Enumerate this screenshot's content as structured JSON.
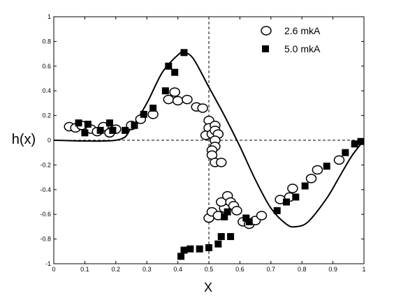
{
  "chart_data": {
    "type": "scatter",
    "title": "",
    "xlabel": "X",
    "ylabel": "h(x)",
    "xlim": [
      0,
      1
    ],
    "ylim": [
      -1,
      1
    ],
    "x_ticks": [
      0,
      0.1,
      0.2,
      0.3,
      0.4,
      0.5,
      0.6,
      0.7,
      0.8,
      0.9,
      1
    ],
    "x_tick_labels": [
      "0",
      "0.1",
      "0.2",
      "0.3",
      "0.4",
      "0.5",
      "0.6",
      "0.7",
      "0.8",
      "0.9",
      "1"
    ],
    "y_ticks": [
      -1,
      -0.8,
      -0.6,
      -0.4,
      -0.2,
      0,
      0.2,
      0.4,
      0.6,
      0.8,
      1
    ],
    "y_tick_labels": [
      "-1",
      "-0.8",
      "-0.6",
      "-0.4",
      "-0.2",
      "0",
      "0.2",
      "0.4",
      "0.6",
      "0.8",
      "1"
    ],
    "grid": false,
    "reference_lines": {
      "horizontal_y": 0,
      "vertical_x": 0.5,
      "style": "dashed"
    },
    "legend_position": "top-right",
    "series": [
      {
        "name": "2.6 mkA",
        "marker": "open-ellipse",
        "points": [
          [
            0.05,
            0.11
          ],
          [
            0.07,
            0.1
          ],
          [
            0.09,
            0.12
          ],
          [
            0.12,
            0.09
          ],
          [
            0.14,
            0.07
          ],
          [
            0.16,
            0.11
          ],
          [
            0.18,
            0.06
          ],
          [
            0.2,
            0.09
          ],
          [
            0.25,
            0.12
          ],
          [
            0.28,
            0.17
          ],
          [
            0.32,
            0.21
          ],
          [
            0.37,
            0.33
          ],
          [
            0.39,
            0.39
          ],
          [
            0.4,
            0.32
          ],
          [
            0.43,
            0.33
          ],
          [
            0.46,
            0.27
          ],
          [
            0.48,
            0.26
          ],
          [
            0.5,
            0.16
          ],
          [
            0.5,
            0.1
          ],
          [
            0.49,
            0.04
          ],
          [
            0.51,
            0.05
          ],
          [
            0.52,
            0.12
          ],
          [
            0.52,
            0.08
          ],
          [
            0.53,
            0.05
          ],
          [
            0.52,
            0.0
          ],
          [
            0.52,
            -0.05
          ],
          [
            0.51,
            -0.08
          ],
          [
            0.51,
            -0.12
          ],
          [
            0.52,
            -0.18
          ],
          [
            0.54,
            -0.18
          ],
          [
            0.5,
            -0.63
          ],
          [
            0.51,
            -0.58
          ],
          [
            0.53,
            -0.61
          ],
          [
            0.55,
            -0.55
          ],
          [
            0.54,
            -0.5
          ],
          [
            0.56,
            -0.45
          ],
          [
            0.57,
            -0.5
          ],
          [
            0.58,
            -0.53
          ],
          [
            0.59,
            -0.57
          ],
          [
            0.61,
            -0.66
          ],
          [
            0.63,
            -0.68
          ],
          [
            0.65,
            -0.65
          ],
          [
            0.67,
            -0.61
          ],
          [
            0.73,
            -0.48
          ],
          [
            0.76,
            -0.46
          ],
          [
            0.77,
            -0.39
          ],
          [
            0.83,
            -0.31
          ],
          [
            0.85,
            -0.24
          ],
          [
            0.92,
            -0.16
          ]
        ]
      },
      {
        "name": "5.0 mkA",
        "marker": "filled-square",
        "points": [
          [
            0.08,
            0.14
          ],
          [
            0.1,
            0.06
          ],
          [
            0.11,
            0.13
          ],
          [
            0.15,
            0.08
          ],
          [
            0.18,
            0.14
          ],
          [
            0.19,
            0.08
          ],
          [
            0.23,
            0.08
          ],
          [
            0.26,
            0.12
          ],
          [
            0.29,
            0.21
          ],
          [
            0.32,
            0.26
          ],
          [
            0.36,
            0.4
          ],
          [
            0.37,
            0.6
          ],
          [
            0.39,
            0.55
          ],
          [
            0.42,
            0.71
          ],
          [
            0.41,
            -0.94
          ],
          [
            0.42,
            -0.89
          ],
          [
            0.44,
            -0.88
          ],
          [
            0.47,
            -0.88
          ],
          [
            0.5,
            -0.87
          ],
          [
            0.53,
            -0.84
          ],
          [
            0.54,
            -0.78
          ],
          [
            0.57,
            -0.78
          ],
          [
            0.55,
            -0.62
          ],
          [
            0.56,
            -0.58
          ],
          [
            0.62,
            -0.63
          ],
          [
            0.63,
            -0.66
          ],
          [
            0.72,
            -0.57
          ],
          [
            0.75,
            -0.5
          ],
          [
            0.78,
            -0.46
          ],
          [
            0.81,
            -0.37
          ],
          [
            0.88,
            -0.21
          ],
          [
            0.94,
            -0.1
          ],
          [
            0.97,
            -0.03
          ],
          [
            0.99,
            -0.01
          ]
        ]
      },
      {
        "name": "",
        "marker": "line",
        "points": [
          [
            0.0,
            0.0
          ],
          [
            0.2,
            0.0
          ],
          [
            0.25,
            0.1
          ],
          [
            0.3,
            0.3
          ],
          [
            0.35,
            0.55
          ],
          [
            0.4,
            0.69
          ],
          [
            0.42,
            0.71
          ],
          [
            0.45,
            0.66
          ],
          [
            0.5,
            0.43
          ],
          [
            0.55,
            0.2
          ],
          [
            0.6,
            -0.05
          ],
          [
            0.65,
            -0.32
          ],
          [
            0.7,
            -0.55
          ],
          [
            0.75,
            -0.68
          ],
          [
            0.78,
            -0.7
          ],
          [
            0.82,
            -0.66
          ],
          [
            0.88,
            -0.47
          ],
          [
            0.92,
            -0.3
          ],
          [
            0.96,
            -0.13
          ],
          [
            1.0,
            0.0
          ]
        ]
      }
    ]
  }
}
